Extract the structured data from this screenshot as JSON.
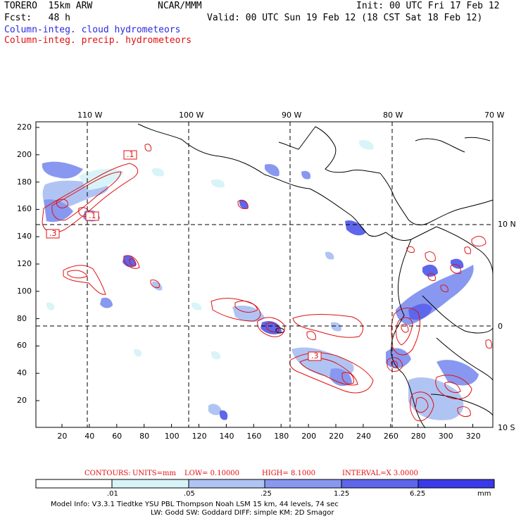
{
  "header": {
    "model": "TORERO  15km ARW",
    "org": "NCAR/MMM",
    "init": "Init: 00 UTC Fri 17 Feb 12",
    "fcst": "Fcst:   48 h",
    "valid": "Valid: 00 UTC Sun 19 Feb 12 (18 CST Sat 18 Feb 12)",
    "field_cloud": "Column-integ. cloud hydrometeors",
    "field_precip": "Column-integ. precip. hydrometeors"
  },
  "colors": {
    "cloud_text": "#2a2ae0",
    "precip_text": "#e01010",
    "contour": "#e01010",
    "coast": "#000000"
  },
  "map": {
    "top_labels": [
      "110 W",
      "100 W",
      "90 W",
      "80 W",
      "70 W"
    ],
    "left_labels": [
      "220",
      "200",
      "180",
      "160",
      "140",
      "120",
      "100",
      "80",
      "60",
      "40",
      "20"
    ],
    "bottom_labels": [
      "20",
      "40",
      "60",
      "80",
      "100",
      "120",
      "140",
      "160",
      "180",
      "200",
      "220",
      "240",
      "260",
      "280",
      "300",
      "320"
    ],
    "right_labels": [
      "10 N",
      "0",
      "10 S"
    ],
    "contour_labels": [
      ".1",
      ".1",
      ".3",
      ".3"
    ]
  },
  "contours_info": {
    "label": "CONTOURS:",
    "units": "UNITS=mm",
    "low": "LOW= 0.10000",
    "high": "HIGH=  8.1000",
    "interval": "INTERVAL=X  3.0000"
  },
  "colorbar": {
    "ticks": [
      ".01",
      ".05",
      ".25",
      "1.25",
      "6.25"
    ],
    "unit": "mm",
    "colors": [
      "#ffffff",
      "#d8f4f8",
      "#b0c4f4",
      "#8898f0",
      "#5e66ec",
      "#3a3ae8",
      "#1414e4"
    ]
  },
  "footer": {
    "line1": "Model Info: V3.3.1    Tiedtke YSU PBL   Thompson     Noah LSM  15 km,   44 levels,    74 sec",
    "line2": "LW: Godd SW: Goddard DIFF: simple KM: 2D Smagor"
  }
}
